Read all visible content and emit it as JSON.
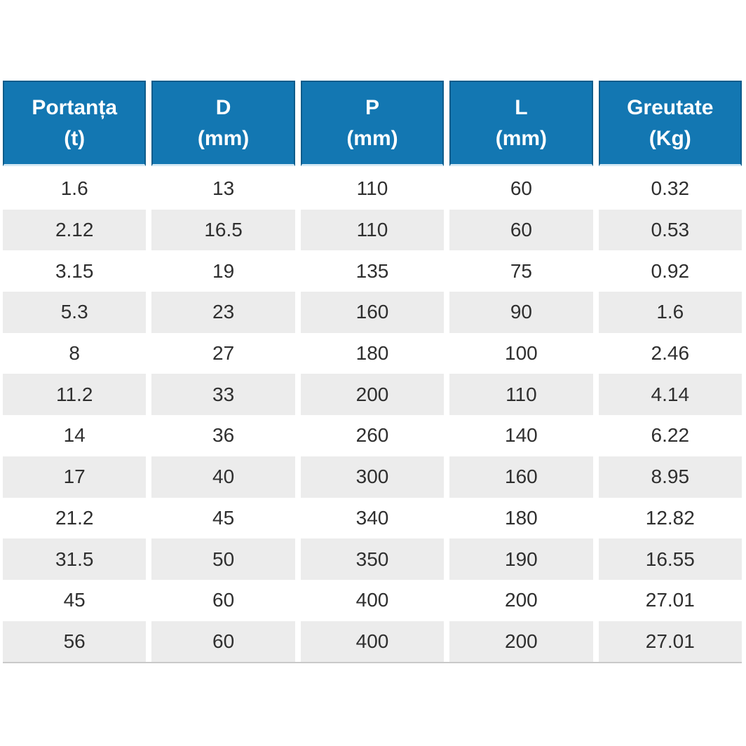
{
  "colors": {
    "header_bg": "#1377b2",
    "header_border": "#0e5c8b",
    "header_bottom_edge": "#d6e9f4",
    "header_text": "#ffffff",
    "stripe_bg": "#ececec",
    "body_text": "#2f2f2f",
    "bottom_rule": "#c9c9c9",
    "page_bg": "#ffffff"
  },
  "table": {
    "columns": [
      {
        "line1": "Portanța",
        "line2": "(t)"
      },
      {
        "line1": "D",
        "line2": "(mm)"
      },
      {
        "line1": "P",
        "line2": "(mm)"
      },
      {
        "line1": "L",
        "line2": "(mm)"
      },
      {
        "line1": "Greutate",
        "line2": "(Kg)"
      }
    ],
    "rows": [
      [
        "1.6",
        "13",
        "110",
        "60",
        "0.32"
      ],
      [
        "2.12",
        "16.5",
        "110",
        "60",
        "0.53"
      ],
      [
        "3.15",
        "19",
        "135",
        "75",
        "0.92"
      ],
      [
        "5.3",
        "23",
        "160",
        "90",
        "1.6"
      ],
      [
        "8",
        "27",
        "180",
        "100",
        "2.46"
      ],
      [
        "11.2",
        "33",
        "200",
        "110",
        "4.14"
      ],
      [
        "14",
        "36",
        "260",
        "140",
        "6.22"
      ],
      [
        "17",
        "40",
        "300",
        "160",
        "8.95"
      ],
      [
        "21.2",
        "45",
        "340",
        "180",
        "12.82"
      ],
      [
        "31.5",
        "50",
        "350",
        "190",
        "16.55"
      ],
      [
        "45",
        "60",
        "400",
        "200",
        "27.01"
      ],
      [
        "56",
        "60",
        "400",
        "200",
        "27.01"
      ]
    ]
  },
  "chart_data": {
    "type": "table",
    "title": "",
    "columns": [
      "Portanța (t)",
      "D (mm)",
      "P (mm)",
      "L (mm)",
      "Greutate (Kg)"
    ],
    "rows": [
      [
        1.6,
        13,
        110,
        60,
        0.32
      ],
      [
        2.12,
        16.5,
        110,
        60,
        0.53
      ],
      [
        3.15,
        19,
        135,
        75,
        0.92
      ],
      [
        5.3,
        23,
        160,
        90,
        1.6
      ],
      [
        8,
        27,
        180,
        100,
        2.46
      ],
      [
        11.2,
        33,
        200,
        110,
        4.14
      ],
      [
        14,
        36,
        260,
        140,
        6.22
      ],
      [
        17,
        40,
        300,
        160,
        8.95
      ],
      [
        21.2,
        45,
        340,
        180,
        12.82
      ],
      [
        31.5,
        50,
        350,
        190,
        16.55
      ],
      [
        45,
        60,
        400,
        200,
        27.01
      ],
      [
        56,
        60,
        400,
        200,
        27.01
      ]
    ],
    "layout": {
      "striped": true,
      "stripe_pattern": "even rows gray",
      "header_position": "top"
    }
  }
}
